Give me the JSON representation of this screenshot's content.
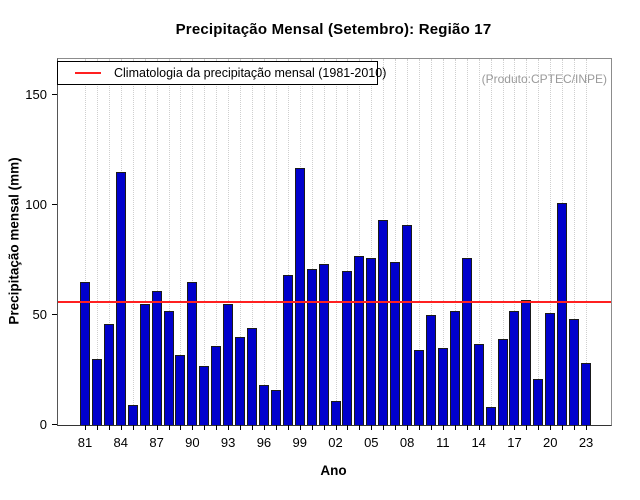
{
  "title": "Precipitação Mensal (Setembro): Região 17",
  "chart_data": {
    "type": "bar",
    "title": "Precipitação Mensal (Setembro): Região 17",
    "xlabel": "Ano",
    "ylabel": "Precipitação mensal (mm)",
    "legend": "Climatologia da precipitação mensal (1981-2010)",
    "annotation": "(Produto:CPTEC/INPE)",
    "categories": [
      "81",
      "82",
      "83",
      "84",
      "85",
      "86",
      "87",
      "88",
      "89",
      "90",
      "91",
      "92",
      "93",
      "94",
      "95",
      "96",
      "97",
      "98",
      "99",
      "00",
      "01",
      "02",
      "03",
      "04",
      "05",
      "06",
      "07",
      "08",
      "09",
      "10",
      "11",
      "12",
      "13",
      "14",
      "15",
      "16",
      "17",
      "18",
      "19",
      "20",
      "21",
      "22",
      "23"
    ],
    "values": [
      65,
      30,
      46,
      115,
      9,
      55,
      61,
      52,
      32,
      65,
      27,
      36,
      55,
      40,
      44,
      18,
      16,
      68,
      117,
      71,
      73,
      11,
      70,
      77,
      76,
      93,
      74,
      91,
      34,
      50,
      35,
      52,
      76,
      37,
      8,
      39,
      52,
      57,
      21,
      51,
      101,
      48,
      28
    ],
    "climatology_value": 55.7,
    "yticks": [
      0,
      50,
      100,
      150
    ],
    "ylim": [
      0,
      166
    ],
    "xtick_label_step": 3,
    "grid": "vertical-dotted",
    "legend_position": "top-left",
    "bar_color": "#0000cc",
    "bar_border_color": "#1a1a1a",
    "line_color": "#ff2020",
    "annotation_color": "#9a9a9a"
  }
}
